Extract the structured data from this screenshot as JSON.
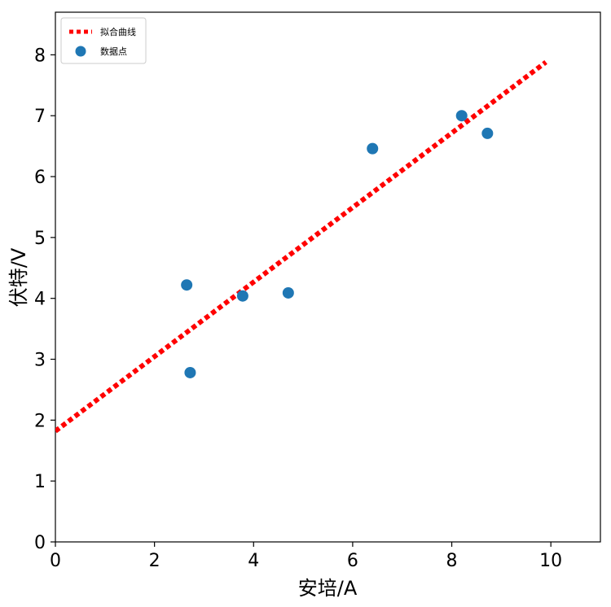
{
  "chart_data": {
    "type": "scatter",
    "xlabel": "安培/A",
    "ylabel": "伏特/V",
    "xlim": [
      0,
      11
    ],
    "ylim": [
      0,
      8.7
    ],
    "x_ticks": [
      0,
      2,
      4,
      6,
      8,
      10
    ],
    "y_ticks": [
      0,
      1,
      2,
      3,
      4,
      5,
      6,
      7,
      8
    ],
    "grid": false,
    "legend_position": "top-left",
    "series": [
      {
        "name": "拟合曲线",
        "kind": "line",
        "style": "dotted",
        "color": "#ff0000",
        "x": [
          0,
          9.9
        ],
        "y": [
          1.82,
          7.88
        ]
      },
      {
        "name": "数据点",
        "kind": "scatter",
        "color": "#1f77b4",
        "x": [
          2.65,
          2.72,
          3.78,
          4.7,
          6.4,
          8.2,
          8.72
        ],
        "y": [
          4.22,
          2.78,
          4.04,
          4.09,
          6.46,
          7.0,
          6.71
        ]
      }
    ]
  }
}
